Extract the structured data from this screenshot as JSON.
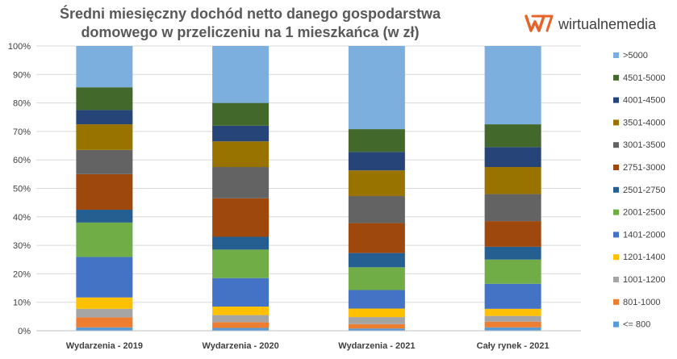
{
  "brand": {
    "name": "wirtualnemedia",
    "logo_color": "#e8622a"
  },
  "chart_data": {
    "type": "bar",
    "stacked": true,
    "normalized": true,
    "title_lines": [
      "Średni miesięczny dochód netto danego gospodarstwa",
      "domowego w przeliczeniu na 1 mieszkańca (w zł)"
    ],
    "xlabel": "",
    "ylabel": "",
    "ylim": [
      0,
      100
    ],
    "y_ticks": [
      "0%",
      "10%",
      "20%",
      "30%",
      "40%",
      "50%",
      "60%",
      "70%",
      "80%",
      "90%",
      "100%"
    ],
    "grid": true,
    "legend_position": "right",
    "categories": [
      "Wydarzenia - 2019",
      "Wydarzenia - 2020",
      "Wydarzenia - 2021",
      "Cały rynek - 2021"
    ],
    "series": [
      {
        "name": "<= 800",
        "color": "#5b9bd5",
        "values": [
          1.2,
          1.0,
          0.8,
          1.2
        ]
      },
      {
        "name": "801-1000",
        "color": "#ed7d31",
        "values": [
          3.5,
          2.0,
          1.5,
          2.0
        ]
      },
      {
        "name": "1001-1200",
        "color": "#a5a5a5",
        "values": [
          3.0,
          2.5,
          2.5,
          2.0
        ]
      },
      {
        "name": "1201-1400",
        "color": "#ffc000",
        "values": [
          4.0,
          3.0,
          3.0,
          2.5
        ]
      },
      {
        "name": "1401-2000",
        "color": "#4472c4",
        "values": [
          14.2,
          10.0,
          6.5,
          8.8
        ]
      },
      {
        "name": "2001-2500",
        "color": "#70ad47",
        "values": [
          12.1,
          10.0,
          8.0,
          8.5
        ]
      },
      {
        "name": "2501-2750",
        "color": "#255e91",
        "values": [
          4.5,
          4.5,
          5.0,
          4.5
        ]
      },
      {
        "name": "2751-3000",
        "color": "#9e480e",
        "values": [
          12.5,
          13.5,
          10.5,
          9.0
        ]
      },
      {
        "name": "3001-3500",
        "color": "#636363",
        "values": [
          8.5,
          11.0,
          9.5,
          9.5
        ]
      },
      {
        "name": "3501-4000",
        "color": "#997300",
        "values": [
          9.0,
          9.0,
          9.0,
          9.5
        ]
      },
      {
        "name": "4001-4500",
        "color": "#264478",
        "values": [
          5.0,
          5.5,
          6.5,
          7.0
        ]
      },
      {
        "name": "4501-5000",
        "color": "#43682b",
        "values": [
          8.0,
          8.0,
          8.0,
          8.0
        ]
      },
      {
        "name": ">5000",
        "color": "#7cafdd",
        "values": [
          14.5,
          20.0,
          29.2,
          27.5
        ]
      }
    ]
  }
}
